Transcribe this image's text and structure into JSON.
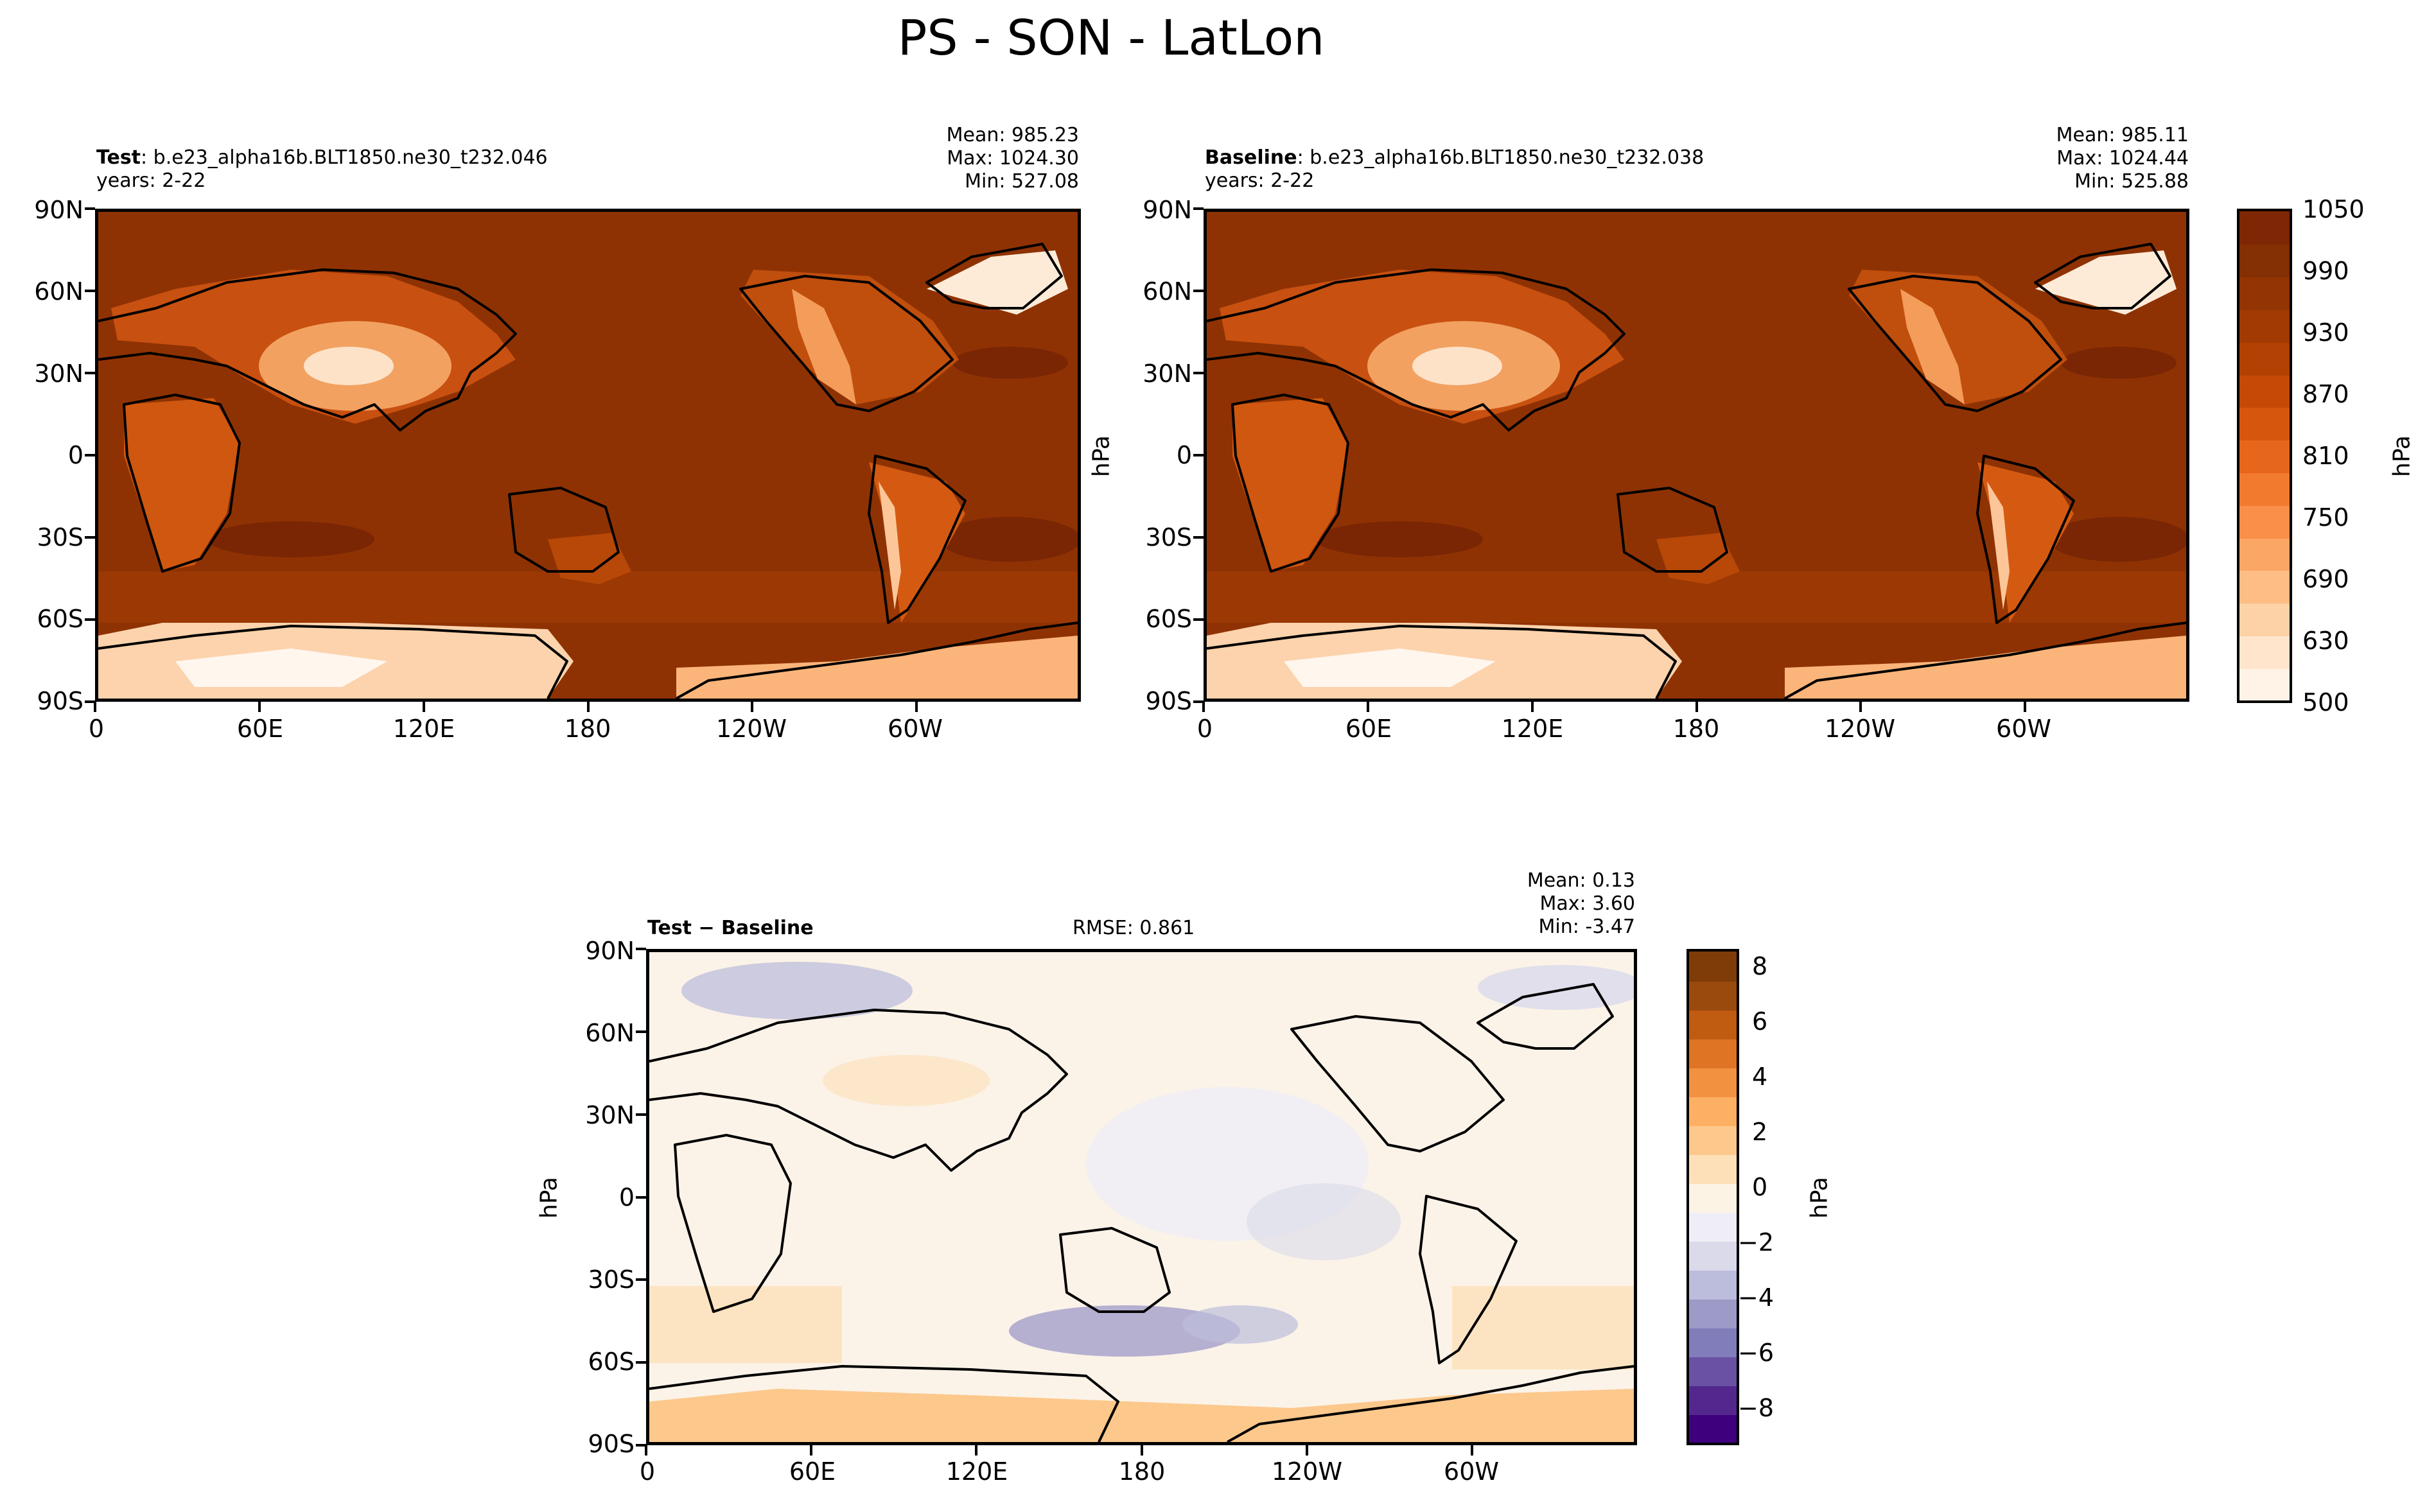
{
  "figure_title": "PS - SON - LatLon",
  "colors": {
    "ps_levels": [
      "#fff3e8",
      "#fee5cc",
      "#fdd2a6",
      "#fdbd85",
      "#fca666",
      "#f98f48",
      "#f27a2e",
      "#e6661b",
      "#d7560d",
      "#c54a06",
      "#b24103",
      "#a13a03",
      "#923403",
      "#842f04",
      "#7f2704"
    ],
    "diff_levels": [
      "#3f007d",
      "#54278f",
      "#6a51a3",
      "#807dba",
      "#9e9ac8",
      "#bcbddc",
      "#dadaeb",
      "#efedf5",
      "#fdf3e4",
      "#fde0b8",
      "#fdc88c",
      "#fdb063",
      "#f2913f",
      "#de7424",
      "#c05b12",
      "#9b4a0e",
      "#7f3b08"
    ]
  },
  "chart_data": [
    {
      "type": "heatmap",
      "panel": "test",
      "label_bold": "Test",
      "label_rest": ": b.e23_alpha16b.BLT1850.ne30_t232.046",
      "years": "years: 2-22",
      "stats": {
        "mean": "Mean: 985.23",
        "max": "Max: 1024.30",
        "min": "Min: 527.08"
      },
      "xticks": [
        "0",
        "60E",
        "120E",
        "180",
        "120W",
        "60W"
      ],
      "yticks": [
        "90N",
        "60N",
        "30N",
        "0",
        "30S",
        "60S",
        "90S"
      ],
      "xrange": [
        0,
        360
      ],
      "yrange": [
        -90,
        90
      ],
      "units": "hPa",
      "value_range": [
        500,
        1050
      ]
    },
    {
      "type": "heatmap",
      "panel": "baseline",
      "label_bold": "Baseline",
      "label_rest": ": b.e23_alpha16b.BLT1850.ne30_t232.038",
      "years": "years: 2-22",
      "stats": {
        "mean": "Mean: 985.11",
        "max": "Max: 1024.44",
        "min": "Min: 525.88"
      },
      "xticks": [
        "0",
        "60E",
        "120E",
        "180",
        "120W",
        "60W"
      ],
      "yticks": [
        "90N",
        "60N",
        "30N",
        "0",
        "30S",
        "60S",
        "90S"
      ],
      "xrange": [
        0,
        360
      ],
      "yrange": [
        -90,
        90
      ],
      "units": "hPa",
      "colorbar": {
        "ticks": [
          "1050",
          "990",
          "930",
          "870",
          "810",
          "750",
          "690",
          "630",
          "500"
        ],
        "label": "hPa"
      }
    },
    {
      "type": "heatmap",
      "panel": "difference",
      "label_bold": "Test − Baseline",
      "rmse": "RMSE: 0.861",
      "stats": {
        "mean": "Mean:  0.13",
        "max": "Max:  3.60",
        "min": "Min: -3.47"
      },
      "xticks": [
        "0",
        "60E",
        "120E",
        "180",
        "120W",
        "60W"
      ],
      "yticks": [
        "90N",
        "60N",
        "30N",
        "0",
        "30S",
        "60S",
        "90S"
      ],
      "xrange": [
        0,
        360
      ],
      "yrange": [
        -90,
        90
      ],
      "units": "hPa",
      "colorbar": {
        "ticks": [
          "8",
          "6",
          "4",
          "2",
          "0",
          "−2",
          "−4",
          "−6",
          "−8"
        ],
        "label": "hPa",
        "range": [
          -9,
          9
        ]
      }
    }
  ]
}
